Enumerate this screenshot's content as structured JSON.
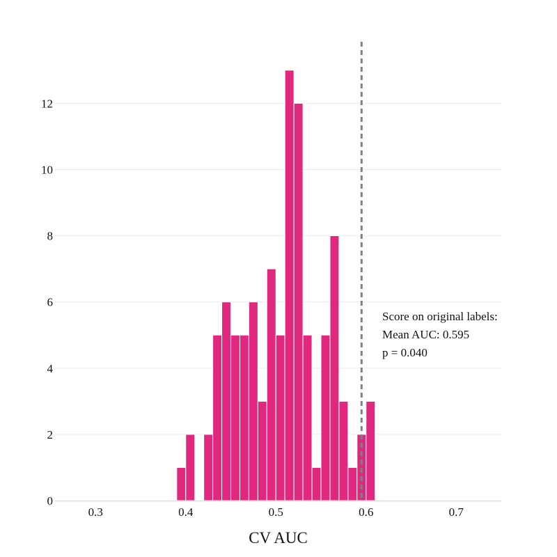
{
  "chart_data": {
    "type": "bar",
    "subtype": "histogram",
    "title": "",
    "xlabel": "CV AUC",
    "ylabel": "",
    "xlim": [
      0.255,
      0.75
    ],
    "ylim": [
      0,
      13.9
    ],
    "bin_width": 0.01,
    "bins": [
      {
        "start": 0.39,
        "count": 1
      },
      {
        "start": 0.4,
        "count": 2
      },
      {
        "start": 0.42,
        "count": 2
      },
      {
        "start": 0.43,
        "count": 5
      },
      {
        "start": 0.44,
        "count": 6
      },
      {
        "start": 0.45,
        "count": 5
      },
      {
        "start": 0.46,
        "count": 5
      },
      {
        "start": 0.47,
        "count": 6
      },
      {
        "start": 0.48,
        "count": 3
      },
      {
        "start": 0.49,
        "count": 7
      },
      {
        "start": 0.5,
        "count": 5
      },
      {
        "start": 0.51,
        "count": 13
      },
      {
        "start": 0.52,
        "count": 12
      },
      {
        "start": 0.53,
        "count": 5
      },
      {
        "start": 0.54,
        "count": 1
      },
      {
        "start": 0.55,
        "count": 5
      },
      {
        "start": 0.56,
        "count": 8
      },
      {
        "start": 0.57,
        "count": 3
      },
      {
        "start": 0.58,
        "count": 1
      },
      {
        "start": 0.59,
        "count": 2
      },
      {
        "start": 0.6,
        "count": 3
      }
    ],
    "x_ticks": [
      0.3,
      0.4,
      0.5,
      0.6,
      0.7
    ],
    "x_tick_labels": [
      "0.3",
      "0.4",
      "0.5",
      "0.6",
      "0.7"
    ],
    "y_ticks": [
      0,
      2,
      4,
      6,
      8,
      10,
      12
    ],
    "y_tick_labels": [
      "0",
      "2",
      "4",
      "6",
      "8",
      "10",
      "12"
    ],
    "grid": "horizontal",
    "reference_line": {
      "x": 0.595,
      "style": "dashed"
    },
    "annotation": [
      "Score on original labels:",
      "Mean AUC: 0.595",
      "p = 0.040"
    ],
    "colors": {
      "bar": "#e0297e",
      "bar_edge": "#ffffff",
      "reference_line": "#808080",
      "grid": "#ebebeb",
      "axis": "#dddddd"
    }
  }
}
